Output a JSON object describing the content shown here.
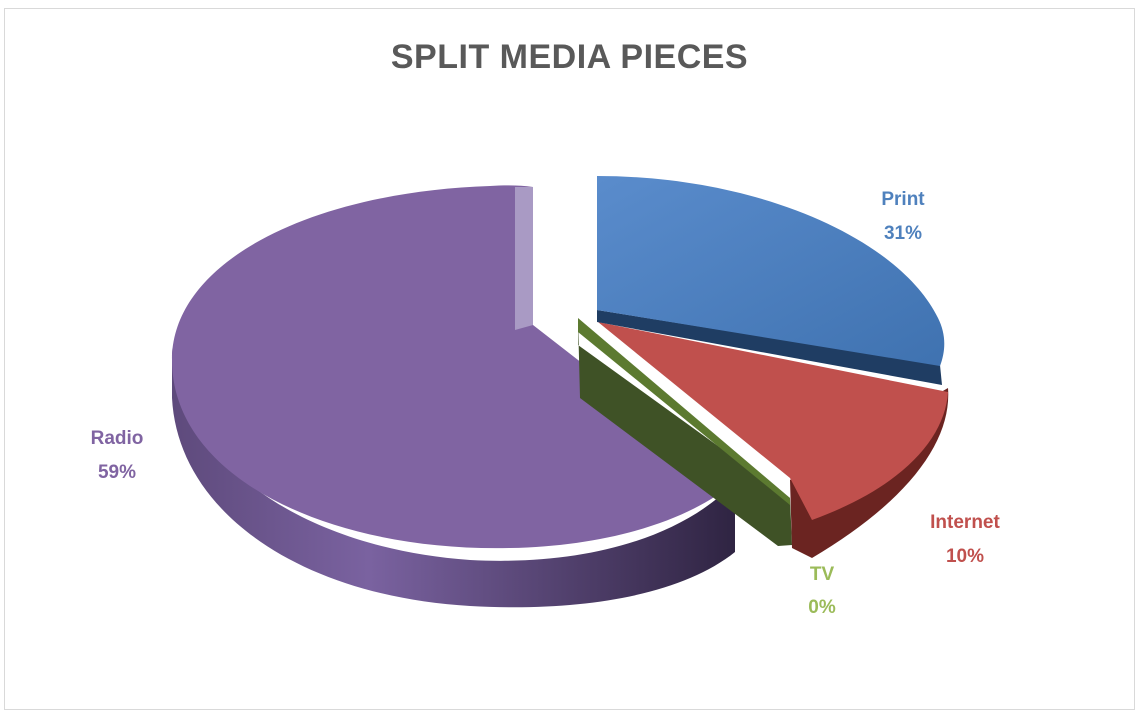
{
  "chart_data": {
    "type": "pie",
    "title": "SPLIT MEDIA PIECES",
    "slices": [
      {
        "label": "Print",
        "value": 31,
        "pct_label": "31%",
        "color": "#4f81bd",
        "side_color": "#1f3d63"
      },
      {
        "label": "Internet",
        "value": 10,
        "pct_label": "10%",
        "color": "#c0504d",
        "side_color": "#5a1f1d"
      },
      {
        "label": "TV",
        "value": 0,
        "pct_label": "0%",
        "color": "#9bbb59",
        "side_color": "#3b4a1f"
      },
      {
        "label": "Radio",
        "value": 59,
        "pct_label": "59%",
        "color": "#8064a2",
        "side_color": "#3e2f57"
      }
    ],
    "legend": "none",
    "exploded": true,
    "three_d": true
  }
}
